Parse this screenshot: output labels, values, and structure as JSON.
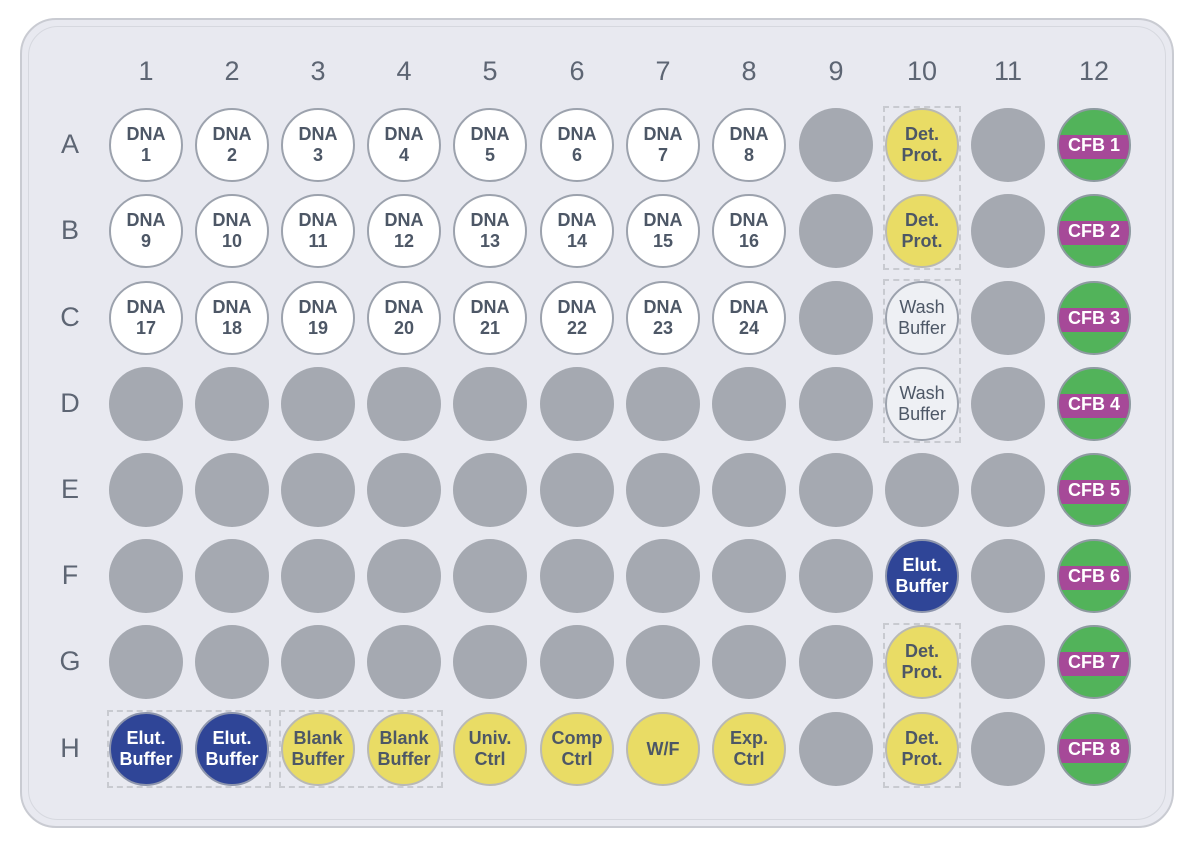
{
  "columns": [
    "1",
    "2",
    "3",
    "4",
    "5",
    "6",
    "7",
    "8",
    "9",
    "10",
    "11",
    "12"
  ],
  "rows": [
    "A",
    "B",
    "C",
    "D",
    "E",
    "F",
    "G",
    "H"
  ],
  "colors": {
    "empty": "#a5a9b1",
    "dna": "#ffffff",
    "yellow": "#e9dc65",
    "elution": "#2f4597",
    "cfb_green": "#52b35a",
    "cfb_magenta": "#a64998"
  },
  "wells": {
    "A1": {
      "type": "dna",
      "label": "DNA\n1"
    },
    "A2": {
      "type": "dna",
      "label": "DNA\n2"
    },
    "A3": {
      "type": "dna",
      "label": "DNA\n3"
    },
    "A4": {
      "type": "dna",
      "label": "DNA\n4"
    },
    "A5": {
      "type": "dna",
      "label": "DNA\n5"
    },
    "A6": {
      "type": "dna",
      "label": "DNA\n6"
    },
    "A7": {
      "type": "dna",
      "label": "DNA\n7"
    },
    "A8": {
      "type": "dna",
      "label": "DNA\n8"
    },
    "A10": {
      "type": "yellow",
      "label": "Det.\nProt."
    },
    "A12": {
      "type": "cfb",
      "label": "CFB 1"
    },
    "B1": {
      "type": "dna",
      "label": "DNA\n9"
    },
    "B2": {
      "type": "dna",
      "label": "DNA\n10"
    },
    "B3": {
      "type": "dna",
      "label": "DNA\n11"
    },
    "B4": {
      "type": "dna",
      "label": "DNA\n12"
    },
    "B5": {
      "type": "dna",
      "label": "DNA\n13"
    },
    "B6": {
      "type": "dna",
      "label": "DNA\n14"
    },
    "B7": {
      "type": "dna",
      "label": "DNA\n15"
    },
    "B8": {
      "type": "dna",
      "label": "DNA\n16"
    },
    "B10": {
      "type": "yellow",
      "label": "Det.\nProt."
    },
    "B12": {
      "type": "cfb",
      "label": "CFB 2"
    },
    "C1": {
      "type": "dna",
      "label": "DNA\n17"
    },
    "C2": {
      "type": "dna",
      "label": "DNA\n18"
    },
    "C3": {
      "type": "dna",
      "label": "DNA\n19"
    },
    "C4": {
      "type": "dna",
      "label": "DNA\n20"
    },
    "C5": {
      "type": "dna",
      "label": "DNA\n21"
    },
    "C6": {
      "type": "dna",
      "label": "DNA\n22"
    },
    "C7": {
      "type": "dna",
      "label": "DNA\n23"
    },
    "C8": {
      "type": "dna",
      "label": "DNA\n24"
    },
    "C10": {
      "type": "wash",
      "label": "Wash\nBuffer"
    },
    "C12": {
      "type": "cfb",
      "label": "CFB 3"
    },
    "D10": {
      "type": "wash",
      "label": "Wash\nBuffer"
    },
    "D12": {
      "type": "cfb",
      "label": "CFB 4"
    },
    "E12": {
      "type": "cfb",
      "label": "CFB 5"
    },
    "F10": {
      "type": "elut",
      "label": "Elut.\nBuffer"
    },
    "F12": {
      "type": "cfb",
      "label": "CFB 6"
    },
    "G10": {
      "type": "yellow",
      "label": "Det.\nProt."
    },
    "G12": {
      "type": "cfb",
      "label": "CFB 7"
    },
    "H1": {
      "type": "elut",
      "label": "Elut.\nBuffer"
    },
    "H2": {
      "type": "elut",
      "label": "Elut.\nBuffer"
    },
    "H3": {
      "type": "yellow",
      "label": "Blank\nBuffer"
    },
    "H4": {
      "type": "yellow",
      "label": "Blank\nBuffer"
    },
    "H5": {
      "type": "yellow",
      "label": "Univ.\nCtrl"
    },
    "H6": {
      "type": "yellow",
      "label": "Comp\nCtrl"
    },
    "H7": {
      "type": "yellow",
      "label": "W/F"
    },
    "H8": {
      "type": "yellow",
      "label": "Exp.\nCtrl"
    },
    "H10": {
      "type": "yellow",
      "label": "Det.\nProt."
    },
    "H12": {
      "type": "cfb",
      "label": "CFB 8"
    }
  },
  "duplicate_groups": [
    [
      "A10",
      "B10"
    ],
    [
      "C10",
      "D10"
    ],
    [
      "G10",
      "H10"
    ],
    [
      "H1",
      "H2"
    ],
    [
      "H3",
      "H4"
    ]
  ]
}
